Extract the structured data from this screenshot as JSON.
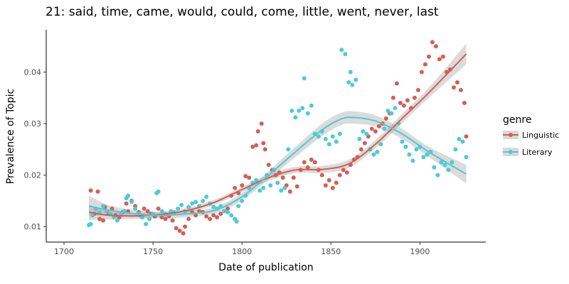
{
  "chart_data": {
    "type": "scatter",
    "title": "21: said, time, came, would, could, come, little, went, never, last",
    "xlabel": "Date of publication",
    "ylabel": "Prevalence of Topic",
    "xlim": [
      1690,
      1937
    ],
    "ylim": [
      0.007,
      0.0482
    ],
    "x_ticks": [
      1700,
      1750,
      1800,
      1850,
      1900
    ],
    "y_ticks": [
      0.01,
      0.02,
      0.03,
      0.04
    ],
    "y_tick_labels": [
      "0.01",
      "0.02",
      "0.03",
      "0.04"
    ],
    "grid": false,
    "legend": {
      "title": "genre",
      "position": "right"
    },
    "series": [
      {
        "name": "Linguistic",
        "color": "#d45f55",
        "smooth": {
          "x": [
            1714,
            1725,
            1740,
            1755,
            1770,
            1785,
            1800,
            1815,
            1830,
            1845,
            1860,
            1875,
            1890,
            1905,
            1926
          ],
          "y": [
            0.0128,
            0.0122,
            0.0121,
            0.0124,
            0.0132,
            0.0148,
            0.0172,
            0.0195,
            0.021,
            0.0211,
            0.0222,
            0.026,
            0.031,
            0.036,
            0.0435
          ],
          "ci_halfwidth": [
            0.0015,
            0.0008,
            0.0006,
            0.0005,
            0.0005,
            0.0005,
            0.0005,
            0.0006,
            0.0006,
            0.0007,
            0.0008,
            0.0008,
            0.0009,
            0.001,
            0.002
          ]
        },
        "points": [
          [
            1715,
            0.017
          ],
          [
            1717,
            0.0125
          ],
          [
            1719,
            0.0168
          ],
          [
            1720,
            0.0115
          ],
          [
            1722,
            0.0112
          ],
          [
            1723,
            0.0138
          ],
          [
            1725,
            0.0125
          ],
          [
            1727,
            0.0135
          ],
          [
            1729,
            0.0122
          ],
          [
            1731,
            0.0118
          ],
          [
            1733,
            0.0128
          ],
          [
            1735,
            0.0145
          ],
          [
            1736,
            0.013
          ],
          [
            1738,
            0.015
          ],
          [
            1740,
            0.014
          ],
          [
            1742,
            0.0128
          ],
          [
            1743,
            0.0122
          ],
          [
            1745,
            0.0135
          ],
          [
            1747,
            0.013
          ],
          [
            1749,
            0.0125
          ],
          [
            1751,
            0.012
          ],
          [
            1753,
            0.0135
          ],
          [
            1755,
            0.0118
          ],
          [
            1757,
            0.0115
          ],
          [
            1759,
            0.012
          ],
          [
            1761,
            0.0112
          ],
          [
            1763,
            0.0097
          ],
          [
            1765,
            0.0092
          ],
          [
            1767,
            0.0087
          ],
          [
            1768,
            0.01
          ],
          [
            1770,
            0.0115
          ],
          [
            1772,
            0.0128
          ],
          [
            1774,
            0.0122
          ],
          [
            1776,
            0.013
          ],
          [
            1778,
            0.0128
          ],
          [
            1780,
            0.012
          ],
          [
            1782,
            0.0115
          ],
          [
            1784,
            0.0122
          ],
          [
            1786,
            0.0118
          ],
          [
            1788,
            0.0125
          ],
          [
            1790,
            0.013
          ],
          [
            1792,
            0.0135
          ],
          [
            1794,
            0.016
          ],
          [
            1796,
            0.0175
          ],
          [
            1798,
            0.0165
          ],
          [
            1800,
            0.018
          ],
          [
            1802,
            0.0198
          ],
          [
            1804,
            0.0195
          ],
          [
            1806,
            0.0255
          ],
          [
            1808,
            0.0258
          ],
          [
            1809,
            0.0285
          ],
          [
            1811,
            0.03
          ],
          [
            1812,
            0.0262
          ],
          [
            1813,
            0.025
          ],
          [
            1815,
            0.022
          ],
          [
            1817,
            0.021
          ],
          [
            1819,
            0.02
          ],
          [
            1821,
            0.0205
          ],
          [
            1823,
            0.0195
          ],
          [
            1825,
            0.018
          ],
          [
            1827,
            0.0168
          ],
          [
            1829,
            0.0195
          ],
          [
            1831,
            0.0178
          ],
          [
            1833,
            0.021
          ],
          [
            1835,
            0.0225
          ],
          [
            1837,
            0.0215
          ],
          [
            1839,
            0.023
          ],
          [
            1841,
            0.0225
          ],
          [
            1843,
            0.021
          ],
          [
            1845,
            0.02
          ],
          [
            1847,
            0.018
          ],
          [
            1849,
            0.019
          ],
          [
            1851,
            0.0175
          ],
          [
            1853,
            0.0185
          ],
          [
            1855,
            0.02
          ],
          [
            1857,
            0.021
          ],
          [
            1859,
            0.0205
          ],
          [
            1861,
            0.022
          ],
          [
            1863,
            0.023
          ],
          [
            1865,
            0.0235
          ],
          [
            1867,
            0.025
          ],
          [
            1869,
            0.0262
          ],
          [
            1871,
            0.0275
          ],
          [
            1873,
            0.029
          ],
          [
            1875,
            0.0285
          ],
          [
            1877,
            0.0295
          ],
          [
            1879,
            0.03
          ],
          [
            1881,
            0.031
          ],
          [
            1883,
            0.032
          ],
          [
            1885,
            0.035
          ],
          [
            1887,
            0.0378
          ],
          [
            1889,
            0.034
          ],
          [
            1891,
            0.0335
          ],
          [
            1893,
            0.0345
          ],
          [
            1895,
            0.033
          ],
          [
            1897,
            0.035
          ],
          [
            1899,
            0.0365
          ],
          [
            1901,
            0.04
          ],
          [
            1903,
            0.0415
          ],
          [
            1905,
            0.043
          ],
          [
            1907,
            0.0458
          ],
          [
            1909,
            0.045
          ],
          [
            1911,
            0.0425
          ],
          [
            1913,
            0.043
          ],
          [
            1915,
            0.04
          ],
          [
            1917,
            0.0405
          ],
          [
            1919,
            0.037
          ],
          [
            1921,
            0.038
          ],
          [
            1923,
            0.0365
          ],
          [
            1925,
            0.034
          ],
          [
            1926,
            0.0275
          ]
        ]
      },
      {
        "name": "Literary",
        "color": "#4ecad6",
        "smooth": {
          "x": [
            1714,
            1725,
            1740,
            1755,
            1770,
            1785,
            1800,
            1815,
            1830,
            1845,
            1855,
            1862,
            1875,
            1890,
            1905,
            1926
          ],
          "y": [
            0.014,
            0.0132,
            0.0125,
            0.0122,
            0.0125,
            0.0132,
            0.0158,
            0.02,
            0.0245,
            0.0288,
            0.0308,
            0.0312,
            0.0305,
            0.028,
            0.0245,
            0.0202
          ],
          "ci_halfwidth": [
            0.002,
            0.001,
            0.0007,
            0.0006,
            0.0006,
            0.0006,
            0.0007,
            0.0008,
            0.001,
            0.0012,
            0.0012,
            0.0012,
            0.0011,
            0.001,
            0.001,
            0.0018
          ]
        },
        "points": [
          [
            1714,
            0.0103
          ],
          [
            1715,
            0.0105
          ],
          [
            1716,
            0.0122
          ],
          [
            1718,
            0.0135
          ],
          [
            1720,
            0.0128
          ],
          [
            1722,
            0.014
          ],
          [
            1724,
            0.013
          ],
          [
            1726,
            0.0125
          ],
          [
            1728,
            0.0118
          ],
          [
            1730,
            0.0112
          ],
          [
            1732,
            0.0125
          ],
          [
            1734,
            0.013
          ],
          [
            1735,
            0.0155
          ],
          [
            1736,
            0.016
          ],
          [
            1738,
            0.0148
          ],
          [
            1740,
            0.0135
          ],
          [
            1742,
            0.0125
          ],
          [
            1744,
            0.0118
          ],
          [
            1746,
            0.0105
          ],
          [
            1748,
            0.0115
          ],
          [
            1750,
            0.0125
          ],
          [
            1752,
            0.0165
          ],
          [
            1753,
            0.0168
          ],
          [
            1755,
            0.013
          ],
          [
            1757,
            0.0125
          ],
          [
            1760,
            0.013
          ],
          [
            1762,
            0.0128
          ],
          [
            1764,
            0.0135
          ],
          [
            1766,
            0.0142
          ],
          [
            1768,
            0.013
          ],
          [
            1770,
            0.0138
          ],
          [
            1772,
            0.0145
          ],
          [
            1774,
            0.0148
          ],
          [
            1776,
            0.014
          ],
          [
            1778,
            0.015
          ],
          [
            1780,
            0.0158
          ],
          [
            1782,
            0.0145
          ],
          [
            1784,
            0.0138
          ],
          [
            1786,
            0.0135
          ],
          [
            1788,
            0.014
          ],
          [
            1790,
            0.013
          ],
          [
            1792,
            0.0128
          ],
          [
            1794,
            0.0122
          ],
          [
            1796,
            0.0115
          ],
          [
            1797,
            0.011
          ],
          [
            1798,
            0.014
          ],
          [
            1800,
            0.015
          ],
          [
            1802,
            0.016
          ],
          [
            1804,
            0.0175
          ],
          [
            1806,
            0.0185
          ],
          [
            1808,
            0.019
          ],
          [
            1810,
            0.017
          ],
          [
            1812,
            0.0175
          ],
          [
            1814,
            0.02
          ],
          [
            1816,
            0.018
          ],
          [
            1818,
            0.021
          ],
          [
            1820,
            0.0185
          ],
          [
            1822,
            0.017
          ],
          [
            1824,
            0.0175
          ],
          [
            1826,
            0.025
          ],
          [
            1828,
            0.0325
          ],
          [
            1830,
            0.0312
          ],
          [
            1832,
            0.0325
          ],
          [
            1834,
            0.033
          ],
          [
            1835,
            0.0388
          ],
          [
            1837,
            0.032
          ],
          [
            1839,
            0.0335
          ],
          [
            1841,
            0.028
          ],
          [
            1843,
            0.0275
          ],
          [
            1845,
            0.0285
          ],
          [
            1847,
            0.027
          ],
          [
            1849,
            0.026
          ],
          [
            1851,
            0.0275
          ],
          [
            1853,
            0.0265
          ],
          [
            1855,
            0.028
          ],
          [
            1856,
            0.0443
          ],
          [
            1858,
            0.0435
          ],
          [
            1860,
            0.038
          ],
          [
            1861,
            0.04
          ],
          [
            1862,
            0.0375
          ],
          [
            1864,
            0.0385
          ],
          [
            1866,
            0.027
          ],
          [
            1868,
            0.0285
          ],
          [
            1870,
            0.028
          ],
          [
            1872,
            0.025
          ],
          [
            1874,
            0.024
          ],
          [
            1876,
            0.0245
          ],
          [
            1878,
            0.026
          ],
          [
            1880,
            0.029
          ],
          [
            1882,
            0.0325
          ],
          [
            1884,
            0.032
          ],
          [
            1886,
            0.033
          ],
          [
            1888,
            0.03
          ],
          [
            1890,
            0.0265
          ],
          [
            1892,
            0.0255
          ],
          [
            1894,
            0.024
          ],
          [
            1896,
            0.0228
          ],
          [
            1898,
            0.025
          ],
          [
            1900,
            0.0255
          ],
          [
            1902,
            0.0235
          ],
          [
            1904,
            0.024
          ],
          [
            1906,
            0.0245
          ],
          [
            1908,
            0.0215
          ],
          [
            1910,
            0.02
          ],
          [
            1912,
            0.0225
          ],
          [
            1914,
            0.022
          ],
          [
            1916,
            0.021
          ],
          [
            1918,
            0.0225
          ],
          [
            1920,
            0.025
          ],
          [
            1922,
            0.027
          ],
          [
            1924,
            0.0265
          ],
          [
            1926,
            0.0235
          ]
        ]
      }
    ]
  }
}
